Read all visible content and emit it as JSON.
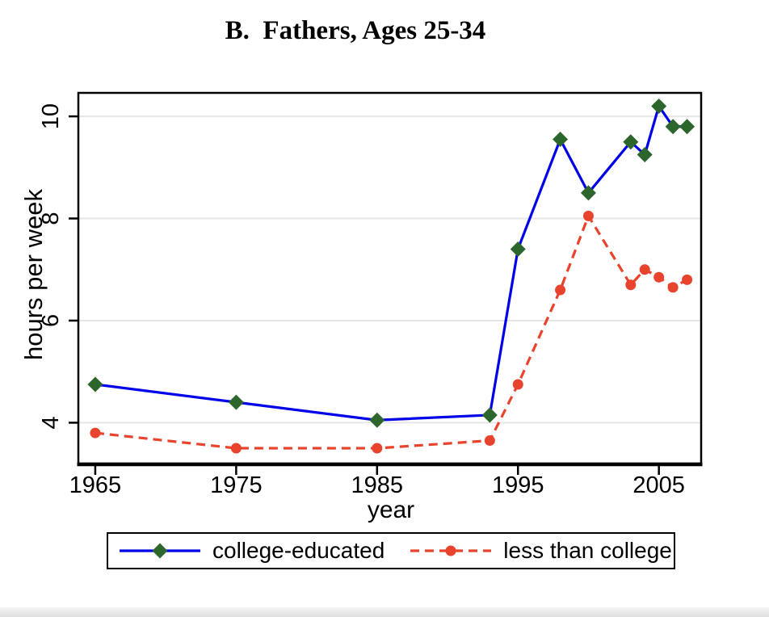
{
  "figure": {
    "title": "B.  Fathers, Ages 25-34"
  },
  "chart_data": {
    "type": "line",
    "title": "B.  Fathers, Ages 25-34",
    "xlabel": "year",
    "ylabel": "hours per week",
    "x": [
      1965,
      1975,
      1985,
      1993,
      1995,
      1998,
      2000,
      2003,
      2004,
      2005,
      2006,
      2007
    ],
    "series": [
      {
        "name": "college-educated",
        "values": [
          4.75,
          4.4,
          4.05,
          4.15,
          7.4,
          9.55,
          8.5,
          9.5,
          9.25,
          10.2,
          9.8,
          9.8
        ],
        "line_style": "solid",
        "line_color": "#0000e8",
        "marker": "diamond",
        "marker_color": "#2d662d"
      },
      {
        "name": "less than college",
        "values": [
          3.8,
          3.5,
          3.5,
          3.65,
          4.75,
          6.6,
          8.05,
          6.7,
          7.0,
          6.85,
          6.65,
          6.8
        ],
        "line_style": "dashed",
        "line_color": "#e8432c",
        "marker": "circle",
        "marker_color": "#e8432c"
      }
    ],
    "x_ticks": [
      1965,
      1975,
      1985,
      1995,
      2005
    ],
    "y_ticks": [
      4,
      6,
      8,
      10
    ],
    "xlim": [
      1963.8,
      2008
    ],
    "ylim": [
      3.2,
      10.46
    ],
    "grid": "horizontal",
    "legend_position": "bottom"
  },
  "colors": {
    "axis": "#000000",
    "grid": "#e6e6e6",
    "background": "#ffffff"
  }
}
